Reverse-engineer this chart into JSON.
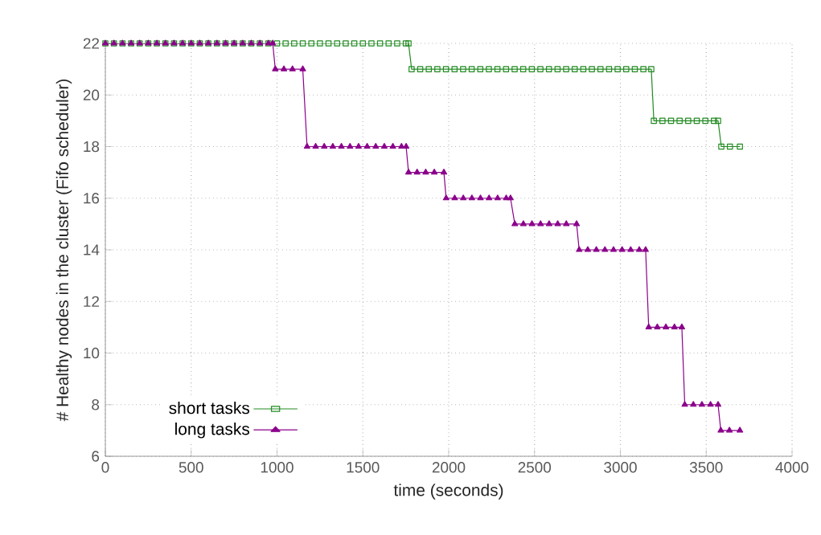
{
  "chart_data": {
    "type": "line",
    "xlabel": "time (seconds)",
    "ylabel": "# Healthy nodes in the cluster (Fifo scheduler)",
    "xlim": [
      0,
      4000
    ],
    "ylim": [
      6,
      22
    ],
    "xticks": [
      0,
      500,
      1000,
      1500,
      2000,
      2500,
      3000,
      3500,
      4000
    ],
    "yticks": [
      6,
      8,
      10,
      12,
      14,
      16,
      18,
      20,
      22
    ],
    "grid": true,
    "legend": "bottom left",
    "line_style": "solid",
    "series": [
      {
        "name": "short tasks",
        "color": "#228b22",
        "marker": "square",
        "x": [
          0,
          50,
          100,
          150,
          200,
          250,
          300,
          350,
          400,
          450,
          500,
          550,
          600,
          650,
          700,
          750,
          800,
          850,
          900,
          950,
          1000,
          1050,
          1100,
          1150,
          1200,
          1250,
          1300,
          1350,
          1400,
          1450,
          1500,
          1550,
          1600,
          1650,
          1700,
          1750,
          1766,
          1784,
          1834,
          1884,
          1934,
          1984,
          2034,
          2084,
          2134,
          2184,
          2234,
          2284,
          2334,
          2384,
          2434,
          2484,
          2534,
          2584,
          2634,
          2684,
          2734,
          2784,
          2834,
          2884,
          2934,
          2984,
          3034,
          3084,
          3134,
          3180,
          3195,
          3245,
          3295,
          3345,
          3395,
          3445,
          3495,
          3545,
          3569,
          3588,
          3638,
          3696
        ],
        "values": [
          22,
          22,
          22,
          22,
          22,
          22,
          22,
          22,
          22,
          22,
          22,
          22,
          22,
          22,
          22,
          22,
          22,
          22,
          22,
          22,
          22,
          22,
          22,
          22,
          22,
          22,
          22,
          22,
          22,
          22,
          22,
          22,
          22,
          22,
          22,
          22,
          22,
          21,
          21,
          21,
          21,
          21,
          21,
          21,
          21,
          21,
          21,
          21,
          21,
          21,
          21,
          21,
          21,
          21,
          21,
          21,
          21,
          21,
          21,
          21,
          21,
          21,
          21,
          21,
          21,
          21,
          19,
          19,
          19,
          19,
          19,
          19,
          19,
          19,
          19,
          18,
          18,
          18
        ]
      },
      {
        "name": "long tasks",
        "color": "#8b008b",
        "marker": "triangle",
        "x": [
          0,
          50,
          100,
          150,
          200,
          250,
          300,
          350,
          400,
          450,
          500,
          550,
          600,
          650,
          700,
          750,
          800,
          850,
          900,
          950,
          975,
          990,
          1040,
          1090,
          1150,
          1175,
          1225,
          1275,
          1325,
          1375,
          1425,
          1475,
          1525,
          1575,
          1625,
          1675,
          1725,
          1752,
          1766,
          1816,
          1866,
          1916,
          1972,
          1985,
          2035,
          2085,
          2135,
          2185,
          2235,
          2285,
          2335,
          2360,
          2385,
          2435,
          2485,
          2535,
          2585,
          2635,
          2685,
          2745,
          2760,
          2810,
          2860,
          2910,
          2960,
          3010,
          3060,
          3110,
          3147,
          3165,
          3215,
          3265,
          3315,
          3358,
          3375,
          3425,
          3475,
          3525,
          3569,
          3585,
          3635,
          3696
        ],
        "values": [
          22,
          22,
          22,
          22,
          22,
          22,
          22,
          22,
          22,
          22,
          22,
          22,
          22,
          22,
          22,
          22,
          22,
          22,
          22,
          22,
          22,
          21,
          21,
          21,
          21,
          18,
          18,
          18,
          18,
          18,
          18,
          18,
          18,
          18,
          18,
          18,
          18,
          18,
          17,
          17,
          17,
          17,
          17,
          16,
          16,
          16,
          16,
          16,
          16,
          16,
          16,
          16,
          15,
          15,
          15,
          15,
          15,
          15,
          15,
          15,
          14,
          14,
          14,
          14,
          14,
          14,
          14,
          14,
          14,
          11,
          11,
          11,
          11,
          11,
          8,
          8,
          8,
          8,
          8,
          7,
          7,
          7
        ]
      }
    ]
  }
}
